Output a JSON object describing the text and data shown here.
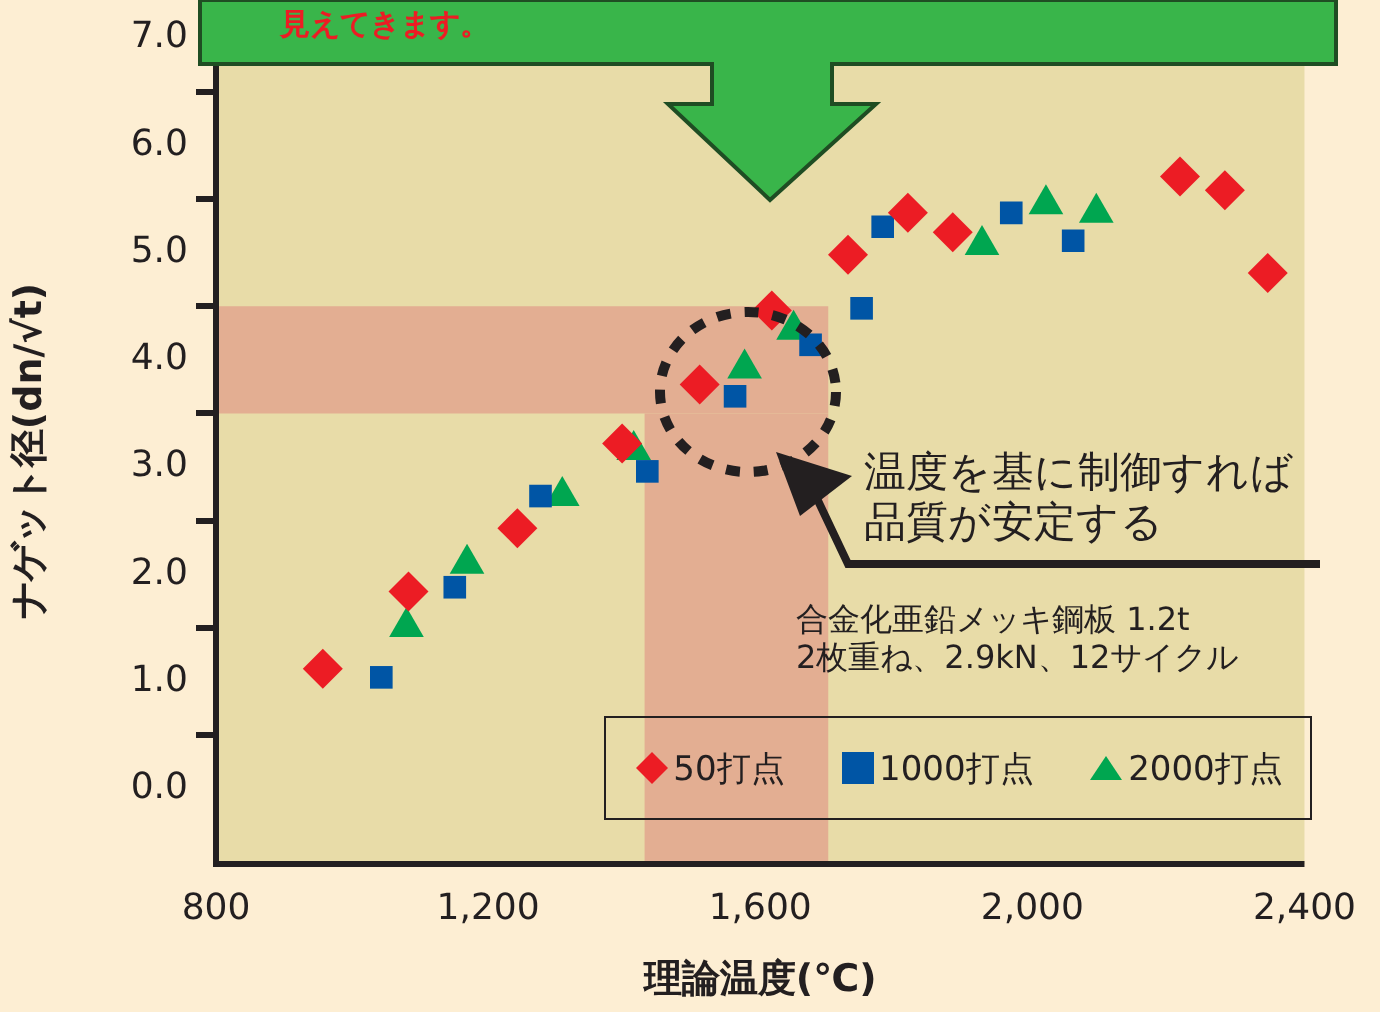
{
  "chart_data": {
    "type": "scatter",
    "xlabel": "理論温度(℃)",
    "ylabel": "ナゲット径(dn/√t)",
    "xlim": [
      800,
      2400
    ],
    "xticks": [
      800,
      {
        "value": 1200,
        "label": "1,200"
      },
      {
        "value": 1600,
        "label": "1,600"
      },
      {
        "value": 2000,
        "label": "2,000"
      },
      {
        "value": 2400,
        "label": "2,400"
      }
    ],
    "ylim": [
      -0.7,
      7.0
    ],
    "yticks": [
      {
        "value": 0,
        "label": "0.0"
      },
      {
        "value": 0.5,
        "label": null
      },
      {
        "value": 1,
        "label": "1.0"
      },
      {
        "value": 1.5,
        "label": null
      },
      {
        "value": 2,
        "label": "2.0"
      },
      {
        "value": 2.5,
        "label": null
      },
      {
        "value": 3,
        "label": "3.0"
      },
      {
        "value": 3.5,
        "label": null
      },
      {
        "value": 4,
        "label": "4.0"
      },
      {
        "value": 4.5,
        "label": null
      },
      {
        "value": 5,
        "label": "5.0"
      },
      {
        "value": 5.5,
        "label": null
      },
      {
        "value": 6,
        "label": "6.0"
      },
      {
        "value": 6.5,
        "label": null
      },
      {
        "value": 7,
        "label": "7.0"
      }
    ],
    "grid": false,
    "legend": "bottom right",
    "bands": [
      {
        "axis": "y",
        "from": 3.5,
        "to": 4.5,
        "color": "#e3ae92"
      },
      {
        "axis": "x",
        "from": 1430,
        "to": 1700,
        "color": "#e3ae92"
      }
    ],
    "annotations": [
      "見えてきます。",
      "温度を基に制御すれば",
      "品質が安定する",
      "合金化亜鉛メッキ鋼板 1.2t\n2枚重ね、2.9kN、12サイクル"
    ],
    "series": [
      {
        "name": "50打点",
        "color": "#ec1c24",
        "marker": "diamond",
        "x": [
          957,
          1083,
          1243,
          1397,
          1511,
          1617,
          1729,
          1817,
          1883,
          2217,
          2283,
          2346
        ],
        "values": [
          1.12,
          1.84,
          2.43,
          3.22,
          3.77,
          4.46,
          4.98,
          5.37,
          5.19,
          5.71,
          5.58,
          4.81
        ]
      },
      {
        "name": "1000打点",
        "color": "#0055a5",
        "marker": "square",
        "x": [
          1043,
          1151,
          1277,
          1434,
          1563,
          1674,
          1749,
          1780,
          1969,
          2060
        ],
        "values": [
          1.04,
          1.88,
          2.73,
          2.96,
          3.66,
          4.14,
          4.48,
          5.24,
          5.37,
          5.11
        ]
      },
      {
        "name": "2000打点",
        "color": "#00a650",
        "marker": "triangle",
        "x": [
          1080,
          1169,
          1309,
          1414,
          1577,
          1649,
          1926,
          2020,
          2094
        ],
        "values": [
          1.51,
          2.1,
          2.73,
          3.16,
          3.92,
          4.28,
          5.07,
          5.45,
          5.37
        ]
      }
    ]
  }
}
